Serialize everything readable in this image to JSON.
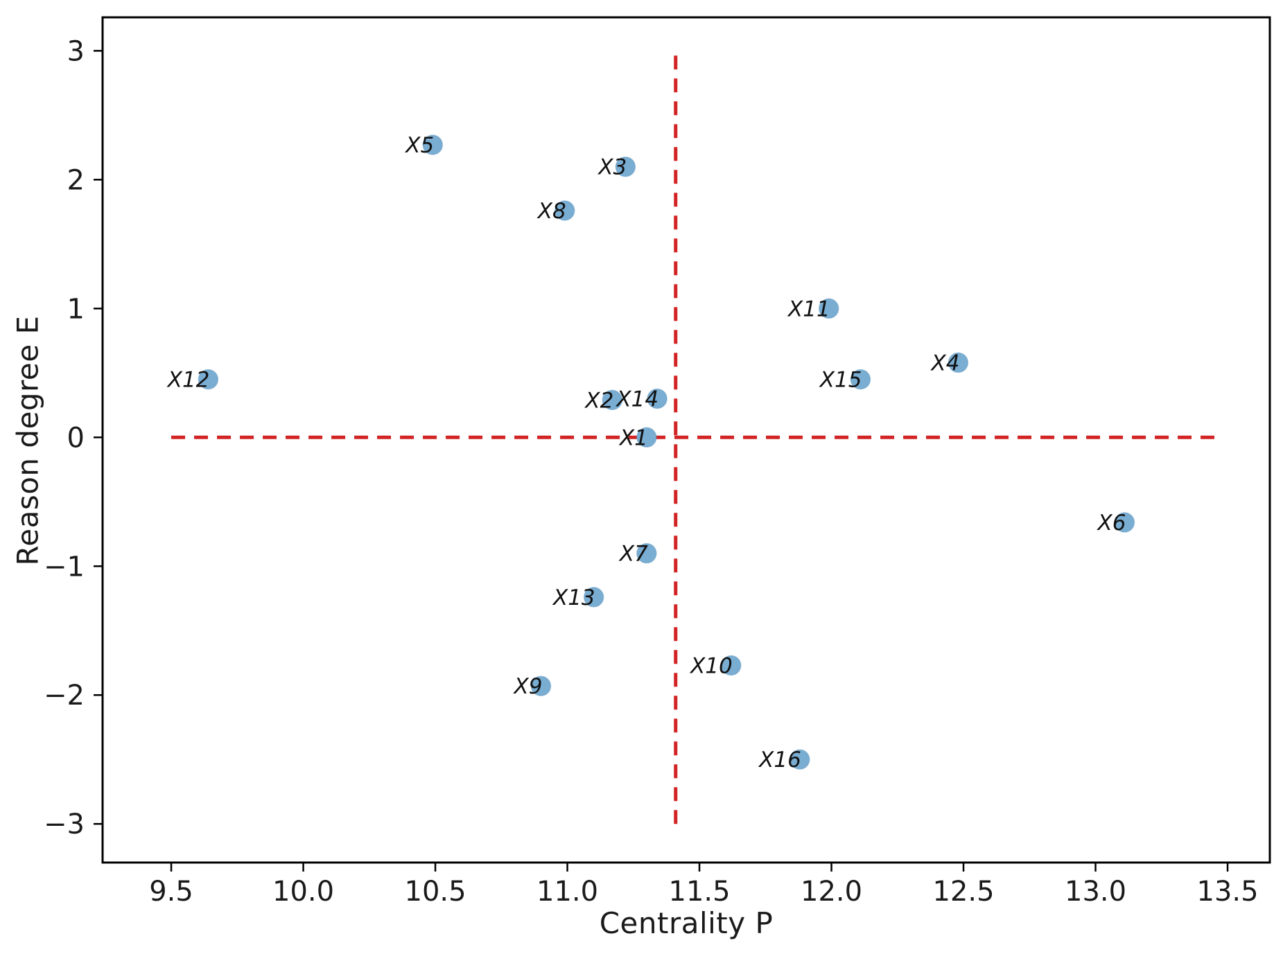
{
  "chart_data": {
    "type": "scatter",
    "title": "",
    "xlabel": "Centrality P",
    "ylabel": "Reason degree E",
    "xlim": [
      9.24,
      13.66
    ],
    "ylim": [
      -3.3,
      3.26
    ],
    "grid": false,
    "legend": null,
    "x_ticks": [
      {
        "value": 9.5,
        "label": "9.5"
      },
      {
        "value": 10.0,
        "label": "10.0"
      },
      {
        "value": 10.5,
        "label": "10.5"
      },
      {
        "value": 11.0,
        "label": "11.0"
      },
      {
        "value": 11.5,
        "label": "11.5"
      },
      {
        "value": 12.0,
        "label": "12.0"
      },
      {
        "value": 12.5,
        "label": "12.5"
      },
      {
        "value": 13.0,
        "label": "13.0"
      },
      {
        "value": 13.5,
        "label": "13.5"
      }
    ],
    "y_ticks": [
      {
        "value": 3,
        "label": "3"
      },
      {
        "value": 2,
        "label": "2"
      },
      {
        "value": 1,
        "label": "1"
      },
      {
        "value": 0,
        "label": "0"
      },
      {
        "value": -1,
        "label": "−1"
      },
      {
        "value": -2,
        "label": "−2"
      },
      {
        "value": -3,
        "label": "−3"
      }
    ],
    "points": [
      {
        "label": "X1",
        "x": 11.3,
        "y": 0.0
      },
      {
        "label": "X2",
        "x": 11.17,
        "y": 0.29
      },
      {
        "label": "X3",
        "x": 11.22,
        "y": 2.1
      },
      {
        "label": "X4",
        "x": 12.48,
        "y": 0.58
      },
      {
        "label": "X5",
        "x": 10.49,
        "y": 2.27
      },
      {
        "label": "X6",
        "x": 13.11,
        "y": -0.66
      },
      {
        "label": "X7",
        "x": 11.3,
        "y": -0.9
      },
      {
        "label": "X8",
        "x": 10.99,
        "y": 1.76
      },
      {
        "label": "X9",
        "x": 10.9,
        "y": -1.93
      },
      {
        "label": "X10",
        "x": 11.62,
        "y": -1.77
      },
      {
        "label": "X11",
        "x": 11.99,
        "y": 1.0
      },
      {
        "label": "X12",
        "x": 9.64,
        "y": 0.45
      },
      {
        "label": "X13",
        "x": 11.1,
        "y": -1.24
      },
      {
        "label": "X14",
        "x": 11.34,
        "y": 0.3
      },
      {
        "label": "X15",
        "x": 12.11,
        "y": 0.45
      },
      {
        "label": "X16",
        "x": 11.88,
        "y": -2.5
      }
    ],
    "reference_lines": {
      "vertical_x": 11.41,
      "vertical_span": [
        -3,
        3
      ],
      "horizontal_y": 0,
      "horizontal_span": [
        9.5,
        13.45
      ],
      "color": "#d22424",
      "style": "dashed"
    },
    "style": {
      "point_color": "#79add2",
      "point_edge_color": "#5f97c2",
      "axis_color": "#000000",
      "text_color": "#1a1a1a"
    }
  }
}
